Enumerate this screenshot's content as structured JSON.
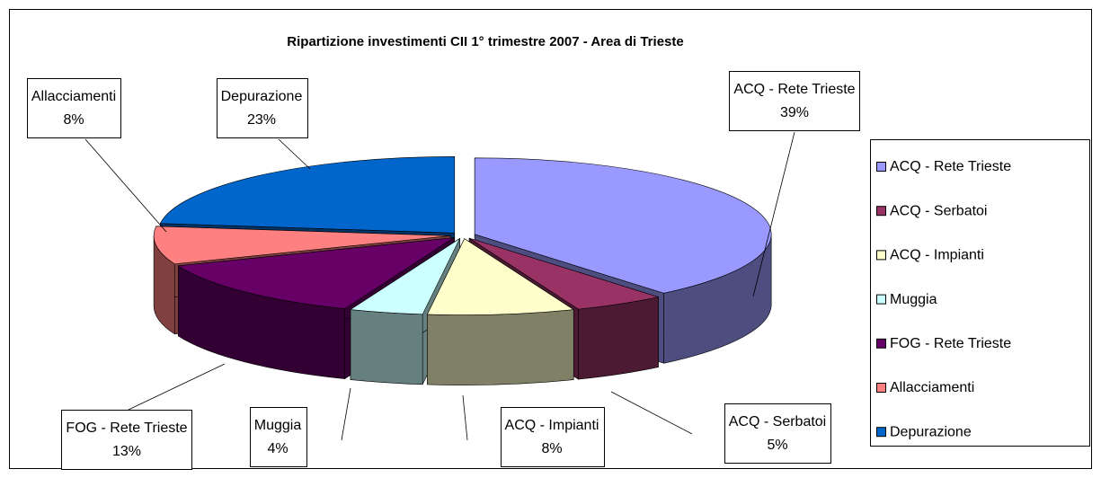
{
  "chart_data": {
    "type": "pie3d",
    "title": "Ripartizione investimenti CII 1° trimestre 2007 - Area di Trieste",
    "categories": [
      "ACQ - Rete Trieste",
      "ACQ - Serbatoi",
      "ACQ - Impianti",
      "Muggia",
      "FOG - Rete Trieste",
      "Allacciamenti",
      "Depurazione"
    ],
    "values": [
      39,
      5,
      8,
      4,
      13,
      8,
      23
    ],
    "value_labels": [
      "39%",
      "5%",
      "8%",
      "4%",
      "13%",
      "8%",
      "23%"
    ],
    "colors": [
      "#9999ff",
      "#993366",
      "#ffffcc",
      "#ccffff",
      "#660066",
      "#ff8080",
      "#0066cc"
    ],
    "legend": "right"
  }
}
